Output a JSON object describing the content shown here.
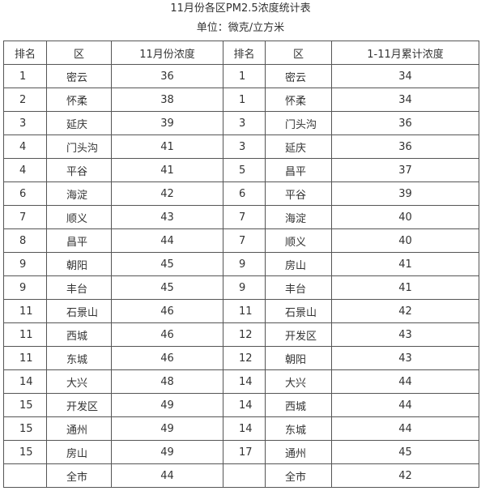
{
  "title": "11月份各区PM2.5浓度统计表",
  "unit": "单位：微克/立方米",
  "headers": [
    "排名",
    "区",
    "11月份浓度",
    "排名",
    "区",
    "1-11月累计浓度"
  ],
  "rows": [
    [
      "1",
      "密云",
      "36",
      "1",
      "密云",
      "34"
    ],
    [
      "2",
      "怀柔",
      "38",
      "1",
      "怀柔",
      "34"
    ],
    [
      "3",
      "延庆",
      "39",
      "3",
      "门头沟",
      "36"
    ],
    [
      "4",
      "门头沟",
      "41",
      "3",
      "延庆",
      "36"
    ],
    [
      "4",
      "平谷",
      "41",
      "5",
      "昌平",
      "37"
    ],
    [
      "6",
      "海淀",
      "42",
      "6",
      "平谷",
      "39"
    ],
    [
      "7",
      "顺义",
      "43",
      "7",
      "海淀",
      "40"
    ],
    [
      "8",
      "昌平",
      "44",
      "7",
      "顺义",
      "40"
    ],
    [
      "9",
      "朝阳",
      "45",
      "9",
      "房山",
      "41"
    ],
    [
      "9",
      "丰台",
      "45",
      "9",
      "丰台",
      "41"
    ],
    [
      "11",
      "石景山",
      "46",
      "11",
      "石景山",
      "42"
    ],
    [
      "11",
      "西城",
      "46",
      "12",
      "开发区",
      "43"
    ],
    [
      "11",
      "东城",
      "46",
      "12",
      "朝阳",
      "43"
    ],
    [
      "14",
      "大兴",
      "48",
      "14",
      "大兴",
      "44"
    ],
    [
      "15",
      "开发区",
      "49",
      "14",
      "西城",
      "44"
    ],
    [
      "15",
      "通州",
      "49",
      "14",
      "东城",
      "44"
    ],
    [
      "15",
      "房山",
      "49",
      "17",
      "通州",
      "45"
    ],
    [
      "",
      "全市",
      "44",
      "",
      "全市",
      "42"
    ]
  ]
}
